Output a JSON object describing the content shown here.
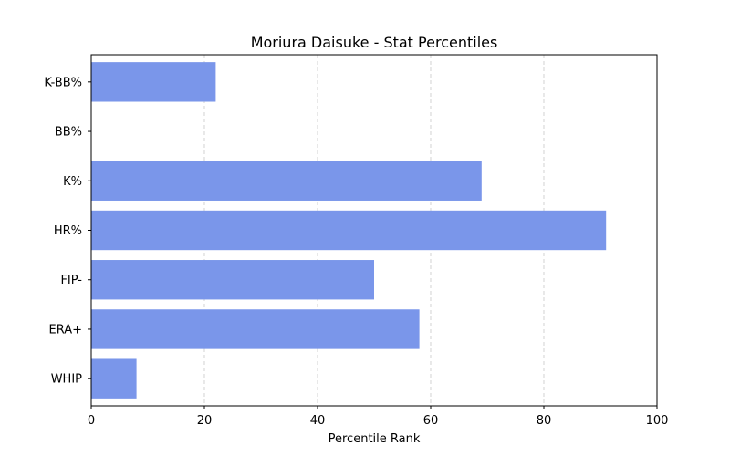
{
  "chart_data": {
    "type": "bar",
    "orientation": "horizontal",
    "title": "Moriura Daisuke - Stat Percentiles",
    "xlabel": "Percentile Rank",
    "ylabel": "",
    "xlim": [
      0,
      100
    ],
    "xticks": [
      0,
      20,
      40,
      60,
      80,
      100
    ],
    "grid": "x-dashed",
    "bar_color": "#7a96ea",
    "categories": [
      "K-BB%",
      "BB%",
      "K%",
      "HR%",
      "FIP-",
      "ERA+",
      "WHIP"
    ],
    "values": [
      22,
      0,
      69,
      91,
      50,
      58,
      8
    ]
  }
}
